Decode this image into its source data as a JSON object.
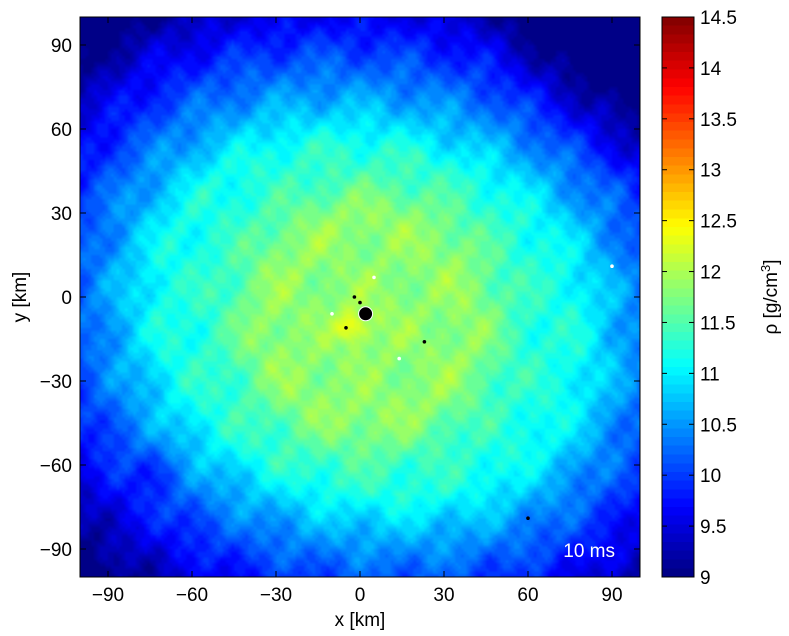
{
  "chart_data": {
    "type": "heatmap",
    "title": "",
    "xlabel": "x [km]",
    "ylabel": "y [km]",
    "xlim": [
      -100,
      100
    ],
    "ylim": [
      -100,
      100
    ],
    "x_ticks": [
      -90,
      -60,
      -30,
      0,
      30,
      60,
      90
    ],
    "y_ticks": [
      -90,
      -60,
      -30,
      0,
      30,
      60,
      90
    ],
    "grid": false,
    "colorbar": {
      "label_prefix": "ρ [g/cm",
      "label_sup": "3",
      "label_suffix": "]",
      "range": [
        9,
        14.5
      ],
      "scale": "log10",
      "colormap": "jet",
      "ticks": [
        "9",
        "9.5",
        "10",
        "10.5",
        "11",
        "11.5",
        "12",
        "12.5",
        "13",
        "13.5",
        "14",
        "14.5"
      ]
    },
    "annotation": "10 ms",
    "field_description": {
      "center_value": 11.9,
      "ring_radius_km": 38,
      "ring_value": 11.7,
      "outer_value": 11.1,
      "corner_value": 9.9,
      "hotspot": {
        "x": -3,
        "y": -11,
        "value": 12.5
      }
    },
    "markers": [
      {
        "x": 2,
        "y": -6,
        "color": "#000000",
        "size": "large"
      },
      {
        "x": -2,
        "y": 0,
        "color": "#000000",
        "size": "small"
      },
      {
        "x": 0,
        "y": -2,
        "color": "#000000",
        "size": "small"
      },
      {
        "x": -5,
        "y": -11,
        "color": "#000000",
        "size": "small"
      },
      {
        "x": 23,
        "y": -16,
        "color": "#000000",
        "size": "small"
      },
      {
        "x": 60,
        "y": -79,
        "color": "#000000",
        "size": "small"
      },
      {
        "x": 5,
        "y": 7,
        "color": "#ffffff",
        "size": "small"
      },
      {
        "x": -10,
        "y": -6,
        "color": "#ffffff",
        "size": "small"
      },
      {
        "x": 14,
        "y": -22,
        "color": "#ffffff",
        "size": "small"
      },
      {
        "x": 90,
        "y": 11,
        "color": "#ffffff",
        "size": "small"
      }
    ]
  }
}
